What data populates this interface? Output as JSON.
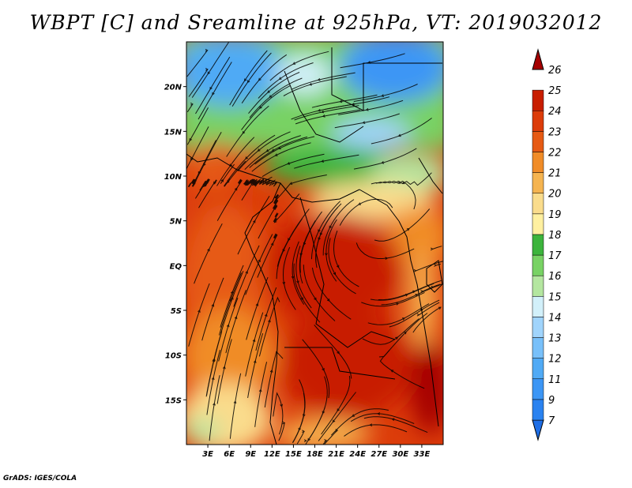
{
  "chart_data": {
    "type": "heatmap",
    "title": "WBPT [C] and Sreamline at 925hPa, VT: 2019032012",
    "variable": "Wet-bulb potential temperature",
    "units": "C",
    "level": "925hPa",
    "valid_time": "2019032012",
    "xlabel": "",
    "ylabel": "",
    "x_ticks": [
      "3E",
      "6E",
      "9E",
      "12E",
      "15E",
      "18E",
      "21E",
      "24E",
      "27E",
      "30E",
      "33E"
    ],
    "x_tick_values": [
      3,
      6,
      9,
      12,
      15,
      18,
      21,
      24,
      27,
      30,
      33
    ],
    "y_ticks": [
      "20N",
      "15N",
      "10N",
      "5N",
      "EQ",
      "5S",
      "10S",
      "15S"
    ],
    "y_tick_values": [
      20,
      15,
      10,
      5,
      0,
      -5,
      -10,
      -15
    ],
    "xlim": [
      0,
      36
    ],
    "ylim": [
      -20,
      25
    ],
    "colorbar": {
      "levels": [
        "7",
        "9",
        "11",
        "12",
        "13",
        "14",
        "15",
        "16",
        "17",
        "18",
        "19",
        "20",
        "21",
        "22",
        "23",
        "24",
        "25",
        "26"
      ],
      "colors": [
        "#1e6ee6",
        "#2a82f0",
        "#3c96f5",
        "#50aaf5",
        "#78c0fa",
        "#a0d4fc",
        "#d2f0fa",
        "#b4e6a0",
        "#78d264",
        "#3cb43c",
        "#fff0a0",
        "#fadc8c",
        "#f5b450",
        "#f08c28",
        "#e65a14",
        "#dc3c0a",
        "#c81e00",
        "#a50000"
      ]
    },
    "features": {
      "streamlines": true,
      "coastlines": true,
      "country_borders": true
    }
  },
  "footer": "GrADS: IGES/COLA"
}
